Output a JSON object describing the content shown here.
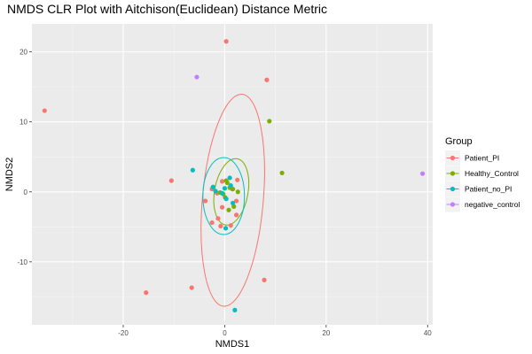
{
  "chart_data": {
    "type": "scatter",
    "title": "NMDS CLR Plot with Aitchison(Euclidean) Distance Metric",
    "xlabel": "NMDS1",
    "ylabel": "NMDS2",
    "xlim": [
      -38,
      41
    ],
    "ylim": [
      -19,
      24
    ],
    "x_ticks": [
      -20,
      0,
      20,
      40
    ],
    "y_ticks": [
      -10,
      0,
      10,
      20
    ],
    "grid": true,
    "legend": {
      "title": "Group",
      "position": "right"
    },
    "series": [
      {
        "name": "Patient_PI",
        "color": "#F8766D",
        "points": [
          [
            0.3,
            21.5
          ],
          [
            8.3,
            16.0
          ],
          [
            -35.5,
            11.6
          ],
          [
            -10.5,
            1.6
          ],
          [
            -15.5,
            -14.4
          ],
          [
            -6.5,
            -13.7
          ],
          [
            7.8,
            -12.6
          ],
          [
            -0.5,
            1.5
          ],
          [
            2.5,
            1.7
          ],
          [
            -2.5,
            0.4
          ],
          [
            1.5,
            0.4
          ],
          [
            -3.8,
            -1.3
          ],
          [
            2.3,
            -1.3
          ],
          [
            -0.5,
            -2.2
          ],
          [
            -2.5,
            -4.4
          ],
          [
            -1.3,
            -3.8
          ],
          [
            2.3,
            -3.3
          ],
          [
            1.2,
            -4.8
          ],
          [
            -0.8,
            -4.9
          ],
          [
            -1.5,
            -0.2
          ]
        ],
        "ellipse": {
          "cx": 1.6,
          "cy": -1.2,
          "rx_sd": 6.0,
          "ry_sd": 15.2,
          "rotation_deg": 5
        }
      },
      {
        "name": "Healthy_Control",
        "color": "#7CAE00",
        "points": [
          [
            8.8,
            10.1
          ],
          [
            11.3,
            2.7
          ],
          [
            0.3,
            1.6
          ],
          [
            0.5,
            1.3
          ],
          [
            1.0,
            0.6
          ],
          [
            2.6,
            0.0
          ],
          [
            -0.3,
            -0.3
          ],
          [
            1.8,
            -2.1
          ],
          [
            0.8,
            -2.6
          ],
          [
            0.1,
            -0.8
          ],
          [
            -0.9,
            -0.1
          ],
          [
            1.6,
            0.4
          ]
        ],
        "ellipse": {
          "cx": 1.3,
          "cy": 0.0,
          "rx_sd": 3.3,
          "ry_sd": 4.8,
          "rotation_deg": 10
        }
      },
      {
        "name": "Patient_no_PI",
        "color": "#00BFC4",
        "points": [
          [
            -6.3,
            3.1
          ],
          [
            1.0,
            2.0
          ],
          [
            -2.3,
            0.7
          ],
          [
            0.0,
            0.5
          ],
          [
            1.2,
            0.9
          ],
          [
            -0.5,
            -0.2
          ],
          [
            0.3,
            -1.0
          ],
          [
            1.6,
            -1.6
          ],
          [
            0.2,
            -5.2
          ],
          [
            2.0,
            -16.9
          ],
          [
            -1.8,
            0.1
          ]
        ],
        "ellipse": {
          "cx": -0.2,
          "cy": -0.6,
          "rx_sd": 4.1,
          "ry_sd": 5.5,
          "rotation_deg": 0
        }
      },
      {
        "name": "negative_control",
        "color": "#C77CFF",
        "points": [
          [
            -5.5,
            16.4
          ],
          [
            39.0,
            2.6
          ]
        ]
      }
    ]
  }
}
